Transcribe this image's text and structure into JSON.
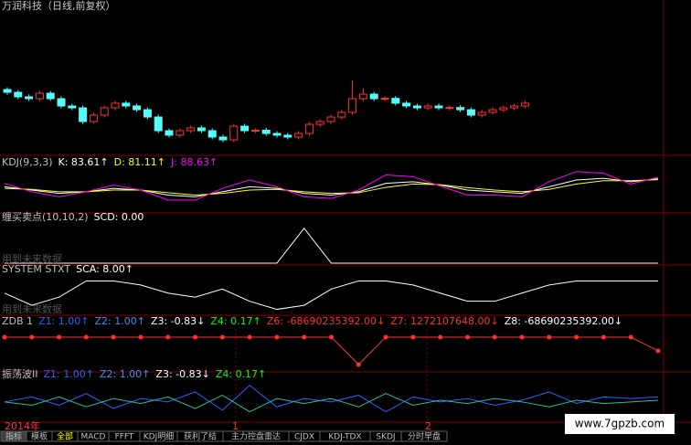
{
  "header": {
    "title": "万润科技（日线,前复权）"
  },
  "chart_data": [
    {
      "type": "candlestick",
      "open": [
        14.12,
        13.94,
        13.65,
        13.53,
        13.88,
        13.53,
        13.06,
        12.94,
        12.06,
        12.47,
        12.94,
        13.24,
        13.06,
        12.82,
        12.35,
        11.47,
        11.18,
        11.47,
        11.65,
        11.47,
        11.06,
        10.88,
        11.76,
        11.47,
        11.5,
        11.29,
        11.18,
        11.06,
        11.29,
        11.88,
        12.06,
        12.35,
        12.65,
        13.53,
        13.82,
        13.53,
        13.55,
        13.24,
        13.06,
        12.94,
        13.06,
        12.94,
        12.96,
        12.82,
        12.47,
        12.65,
        12.82,
        12.94,
        13.06
      ],
      "high": [
        14.27,
        14.09,
        13.8,
        14.03,
        14.03,
        13.68,
        13.21,
        13.09,
        12.62,
        13.09,
        13.39,
        13.39,
        13.21,
        12.97,
        12.5,
        11.62,
        11.62,
        11.8,
        11.8,
        11.62,
        11.21,
        11.91,
        11.91,
        11.62,
        11.65,
        11.44,
        11.33,
        11.44,
        12.03,
        12.21,
        12.5,
        12.8,
        14.71,
        14.2,
        13.97,
        13.68,
        13.7,
        13.39,
        13.21,
        13.21,
        13.21,
        13.09,
        13.11,
        12.97,
        12.8,
        12.97,
        13.09,
        13.21,
        13.39
      ],
      "low": [
        13.79,
        13.5,
        13.38,
        13.38,
        13.38,
        12.91,
        12.79,
        11.91,
        11.91,
        12.32,
        12.79,
        12.91,
        12.67,
        12.2,
        11.32,
        11.03,
        11.03,
        11.32,
        11.32,
        10.91,
        10.73,
        10.73,
        11.32,
        11.32,
        11.14,
        11.03,
        10.91,
        10.91,
        11.14,
        11.73,
        11.91,
        12.2,
        12.5,
        13.38,
        13.38,
        13.38,
        13.09,
        12.91,
        12.79,
        12.79,
        12.79,
        12.79,
        12.67,
        12.32,
        12.32,
        12.5,
        12.67,
        12.79,
        12.91
      ],
      "close": [
        13.94,
        13.65,
        13.53,
        13.88,
        13.53,
        13.06,
        12.94,
        12.06,
        12.47,
        12.94,
        13.24,
        13.06,
        12.82,
        12.35,
        11.47,
        11.18,
        11.47,
        11.65,
        11.47,
        11.06,
        10.88,
        11.76,
        11.47,
        11.5,
        11.29,
        11.18,
        11.06,
        11.29,
        11.88,
        12.06,
        12.35,
        12.65,
        13.53,
        13.82,
        13.53,
        13.55,
        13.24,
        13.06,
        12.94,
        13.06,
        12.94,
        12.96,
        12.82,
        12.47,
        12.65,
        12.82,
        12.94,
        13.06,
        13.24
      ],
      "ylim": [
        10,
        20
      ],
      "up_color": "#ff3232",
      "down_color": "#54fcfc"
    },
    {
      "type": "line",
      "label": [
        {
          "text": "KDJ(9,3,3)",
          "color": "#c0c0c0"
        },
        {
          "text": "K: 83.61↑",
          "color": "#ffffff"
        },
        {
          "text": "D: 81.11↑",
          "color": "#ffff00"
        },
        {
          "text": "J: 88.63↑",
          "color": "#ff00ff"
        }
      ],
      "ylim": [
        -10,
        110
      ],
      "series": [
        {
          "color": "#ffffff",
          "values": [
            60,
            50,
            40,
            45,
            55,
            50,
            35,
            30,
            45,
            60,
            55,
            40,
            35,
            45,
            70,
            75,
            65,
            50,
            45,
            40,
            60,
            80,
            85,
            75,
            83.61
          ]
        },
        {
          "color": "#ffff00",
          "values": [
            55,
            52,
            45,
            45,
            50,
            50,
            42,
            35,
            40,
            50,
            52,
            45,
            40,
            42,
            58,
            68,
            66,
            57,
            50,
            45,
            52,
            68,
            78,
            78,
            81.11
          ]
        },
        {
          "color": "#ff00ff",
          "values": [
            70,
            45,
            30,
            45,
            65,
            50,
            20,
            20,
            55,
            80,
            60,
            30,
            25,
            50,
            95,
            90,
            62,
            35,
            35,
            30,
            75,
            105,
            100,
            68,
            88.63
          ]
        }
      ]
    },
    {
      "type": "line",
      "label": [
        {
          "text": "缠买卖点(10,10,2)",
          "color": "#c0c0c0"
        },
        {
          "text": "SCD: 0.00",
          "color": "#ffffff"
        }
      ],
      "warning": "用到未来数据",
      "ylim": [
        0,
        1.1
      ],
      "series": [
        {
          "color": "#ffffff",
          "values": [
            0,
            0,
            0,
            0,
            0,
            0,
            0,
            0,
            0,
            0,
            0,
            1,
            0,
            0,
            0,
            0,
            0,
            0,
            0,
            0,
            0,
            0,
            0,
            0,
            0
          ]
        }
      ]
    },
    {
      "type": "line",
      "label": [
        {
          "text": "SYSTEM STXT",
          "color": "#c0c0c0"
        },
        {
          "text": "SCA: 8.00↑",
          "color": "#ffffff"
        }
      ],
      "warning": "用到未来数据",
      "ylim": [
        0,
        9
      ],
      "series": [
        {
          "color": "#ffffff",
          "values": [
            5,
            2,
            4,
            8,
            8,
            7,
            5,
            4,
            6,
            3,
            1,
            2,
            6,
            8,
            8,
            7,
            5,
            3,
            3,
            5,
            7,
            8,
            8,
            8,
            8
          ]
        }
      ]
    },
    {
      "type": "line",
      "label": [
        {
          "text": "ZDB 1",
          "color": "#c0c0c0"
        },
        {
          "text": "Z1: 1.00↑",
          "color": "#3060ff"
        },
        {
          "text": "Z2: 1.00↑",
          "color": "#4090ff"
        },
        {
          "text": "Z3: -0.83↓",
          "color": "#ffffff"
        },
        {
          "text": "Z4: 0.17↑",
          "color": "#00ff00"
        },
        {
          "text": "Z6: -68690235392.00↓",
          "color": "#ff3232"
        },
        {
          "text": "Z7: 1272107648.00↓",
          "color": "#ff3232"
        },
        {
          "text": "Z8: -68690235392.00↓",
          "color": "#ffffff"
        }
      ],
      "ylim": [
        -1.2,
        0.3
      ],
      "markers": true,
      "series": [
        {
          "color": "#ff3232",
          "values": [
            0,
            0,
            0,
            0,
            0,
            0,
            0,
            0,
            0,
            0,
            0,
            0,
            0,
            -1,
            0,
            0,
            0,
            0,
            0,
            0,
            0,
            0,
            0,
            0,
            -0.5
          ]
        }
      ]
    },
    {
      "type": "line",
      "label": [
        {
          "text": "振荡波II",
          "color": "#c0c0c0"
        },
        {
          "text": "Z1: 1.00↑",
          "color": "#3060ff"
        },
        {
          "text": "Z2: 1.00↑",
          "color": "#4090ff"
        },
        {
          "text": "Z3: -0.83↓",
          "color": "#ffffff"
        },
        {
          "text": "Z4: 0.17↑",
          "color": "#00ff00"
        }
      ],
      "ylim": [
        -1,
        1.2
      ],
      "series": [
        {
          "color": "#3060ff",
          "values": [
            0,
            0.3,
            -0.2,
            0.5,
            -0.4,
            0.2,
            0,
            0.6,
            -0.5,
            1,
            -0.3,
            0.2,
            0,
            0.4,
            -0.6,
            0.3,
            0,
            0.2,
            -0.2,
            0.1,
            0.6,
            -0.1,
            0.3,
            0.2,
            0.3
          ]
        },
        {
          "color": "#20c0a0",
          "values": [
            0,
            -0.2,
            0.3,
            -0.3,
            0.2,
            -0.1,
            0.3,
            -0.4,
            0.4,
            -0.6,
            0.2,
            -0.1,
            0.2,
            -0.3,
            0.5,
            -0.2,
            0.1,
            -0.1,
            0.2,
            0,
            -0.3,
            0.1,
            -0.1,
            0,
            0.1
          ]
        }
      ]
    }
  ],
  "axis": {
    "labels": [
      "2014年",
      "1",
      "2"
    ]
  },
  "tabs": [
    "指标",
    "模板",
    "全部",
    "MACD",
    "FFFT",
    "KDJ明细",
    "获利了结",
    "主力控盘雷达",
    "CJDX",
    "KDJ-TDX",
    "SKDJ",
    "分时早盘"
  ],
  "watermark": "www.7gpzb.com"
}
